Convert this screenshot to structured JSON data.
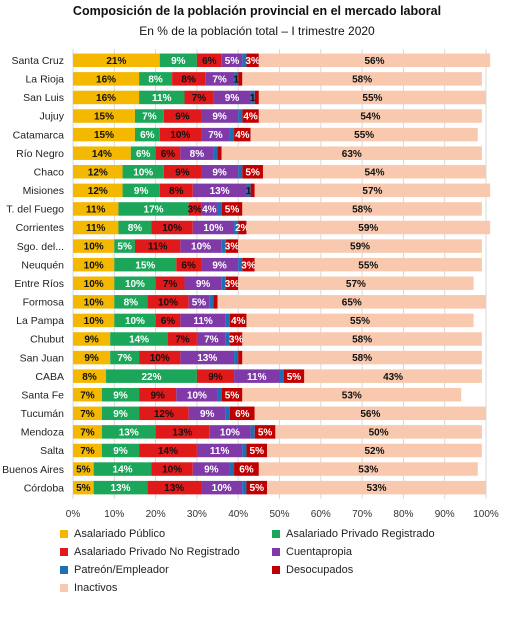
{
  "chart_data": {
    "type": "bar",
    "orientation": "horizontal-stacked",
    "title": "Composición de la población provincial en el mercado laboral",
    "subtitle": "En % de la población total – I trimestre 2020",
    "xlim": [
      0,
      100
    ],
    "x_ticks": [
      "0%",
      "10%",
      "20%",
      "30%",
      "40%",
      "50%",
      "60%",
      "70%",
      "80%",
      "90%",
      "100%"
    ],
    "grid": true,
    "legend_position": "bottom",
    "categories": [
      "Santa Cruz",
      "La Rioja",
      "San Luis",
      "Jujuy",
      "Catamarca",
      "Río Negro",
      "Chaco",
      "Misiones",
      "T. del Fuego",
      "Corrientes",
      "Sgo. del...",
      "Neuquén",
      "Entre Ríos",
      "Formosa",
      "La Pampa",
      "Chubut",
      "San Juan",
      "CABA",
      "Santa Fe",
      "Tucumán",
      "Mendoza",
      "Salta",
      "Buenos Aires",
      "Córdoba"
    ],
    "series": [
      {
        "name": "Asalariado Público",
        "color": "#F4B800",
        "text_color": "#111111",
        "values": [
          21,
          16,
          16,
          15,
          15,
          14,
          12,
          12,
          11,
          11,
          10,
          10,
          10,
          10,
          10,
          9,
          9,
          8,
          7,
          7,
          7,
          7,
          5,
          5
        ],
        "labels": [
          "21%",
          "16%",
          "16%",
          "15%",
          "15%",
          "14%",
          "12%",
          "12%",
          "11%",
          "11%",
          "10%",
          "10%",
          "10%",
          "10%",
          "10%",
          "9%",
          "9%",
          "8%",
          "7%",
          "7%",
          "7%",
          "7%",
          "5%",
          "5%"
        ]
      },
      {
        "name": "Asalariado Privado Registrado",
        "color": "#1BA65A",
        "text_color": "#ffffff",
        "values": [
          9,
          8,
          11,
          7,
          6,
          6,
          10,
          9,
          17,
          8,
          5,
          15,
          10,
          8,
          10,
          14,
          7,
          22,
          9,
          9,
          13,
          9,
          14,
          13
        ],
        "labels": [
          "9%",
          "8%",
          "11%",
          "7%",
          "6%",
          "6%",
          "10%",
          "9%",
          "17%",
          "8%",
          "5%",
          "15%",
          "10%",
          "8%",
          "10%",
          "14%",
          "7%",
          "22%",
          "9%",
          "9%",
          "13%",
          "9%",
          "14%",
          "13%"
        ]
      },
      {
        "name": "Asalariado Privado No Registrado",
        "color": "#E01A1A",
        "text_color": "#111111",
        "values": [
          6,
          8,
          7,
          9,
          10,
          6,
          9,
          8,
          3,
          10,
          11,
          6,
          7,
          10,
          6,
          7,
          10,
          9,
          9,
          12,
          13,
          14,
          10,
          13
        ],
        "labels": [
          "6%",
          "8%",
          "7%",
          "9%",
          "10%",
          "6%",
          "9%",
          "8%",
          "3%",
          "10%",
          "11%",
          "6%",
          "7%",
          "10%",
          "6%",
          "7%",
          "10%",
          "9%",
          "9%",
          "12%",
          "13%",
          "14%",
          "10%",
          "13%"
        ]
      },
      {
        "name": "Cuentapropia",
        "color": "#7F3AA8",
        "text_color": "#ffffff",
        "values": [
          5,
          7,
          9,
          9,
          7,
          8,
          9,
          13,
          4,
          10,
          10,
          9,
          9,
          5,
          11,
          7,
          13,
          11,
          10,
          9,
          10,
          11,
          9,
          10
        ],
        "labels": [
          "5%",
          "7%",
          "9%",
          "9%",
          "7%",
          "8%",
          "9%",
          "13%",
          "4%",
          "10%",
          "10%",
          "9%",
          "9%",
          "5%",
          "11%",
          "7%",
          "13%",
          "11%",
          "10%",
          "9%",
          "10%",
          "11%",
          "9%",
          "10%"
        ]
      },
      {
        "name": "Patreón/Empleador",
        "color": "#1F6FB5",
        "text_color": "#111111",
        "values": [
          1,
          1,
          1,
          1,
          1,
          1,
          1,
          1,
          1,
          1,
          1,
          1,
          1,
          1,
          1,
          1,
          1,
          1,
          1,
          1,
          1,
          1,
          1,
          1
        ],
        "labels": [
          "",
          "1",
          "1",
          "",
          "",
          "",
          "",
          "1",
          "",
          "",
          "",
          "",
          "",
          "",
          "",
          "",
          "",
          "",
          "",
          "",
          "",
          "",
          "",
          ""
        ]
      },
      {
        "name": "Desocupados",
        "color": "#C00000",
        "text_color": "#ffffff",
        "values": [
          3,
          1,
          1,
          4,
          4,
          1,
          5,
          1,
          5,
          2,
          3,
          3,
          3,
          1,
          4,
          3,
          1,
          5,
          5,
          6,
          5,
          5,
          6,
          5
        ],
        "labels": [
          "3%",
          "",
          "",
          "4%",
          "4%",
          "",
          "5%",
          "",
          "5%",
          "2%",
          "3%",
          "3%",
          "3%",
          "",
          "4%",
          "3%",
          "",
          "5%",
          "5%",
          "6%",
          "5%",
          "5%",
          "6%",
          "5%"
        ]
      },
      {
        "name": "Inactivos",
        "color": "#F8C9AE",
        "text_color": "#111111",
        "values": [
          56,
          58,
          55,
          54,
          55,
          63,
          54,
          57,
          58,
          59,
          59,
          55,
          57,
          65,
          55,
          58,
          58,
          43,
          53,
          56,
          50,
          52,
          53,
          53
        ],
        "labels": [
          "56%",
          "58%",
          "55%",
          "54%",
          "55%",
          "63%",
          "54%",
          "57%",
          "58%",
          "59%",
          "59%",
          "55%",
          "57%",
          "65%",
          "55%",
          "58%",
          "58%",
          "43%",
          "53%",
          "56%",
          "50%",
          "52%",
          "53%",
          "53%"
        ]
      }
    ]
  }
}
